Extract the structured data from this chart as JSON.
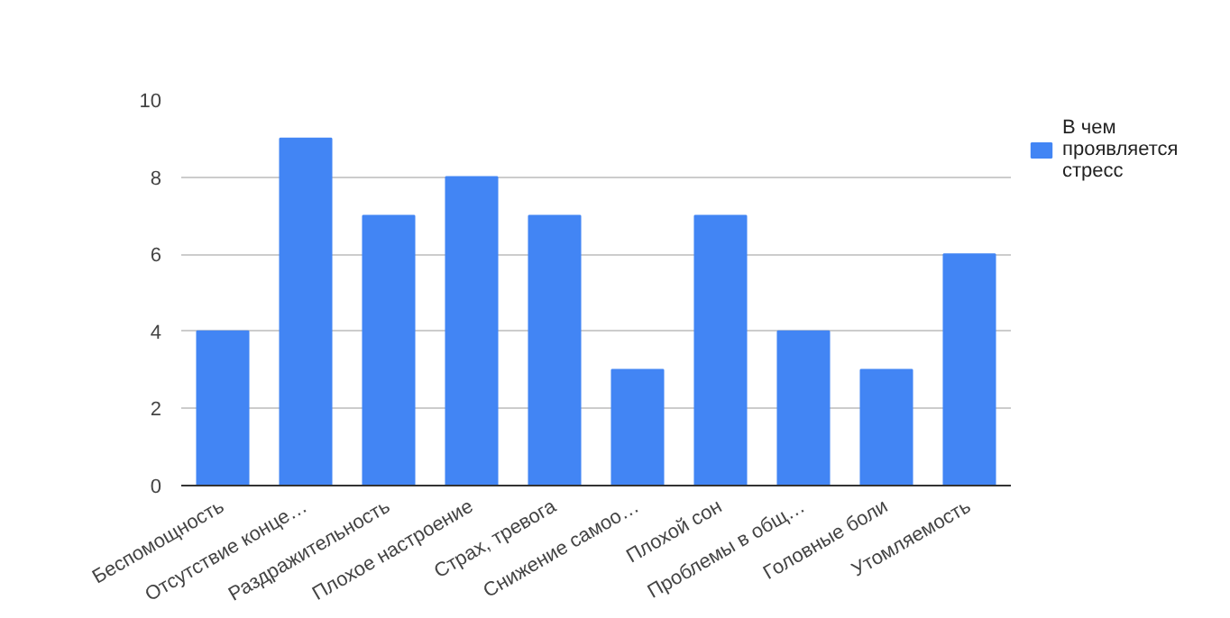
{
  "chart_data": {
    "type": "bar",
    "categories": [
      "Беспомощность",
      "Отсутствие конце…",
      "Раздражительность",
      "Плохое настроение",
      "Страх, тревога",
      "Снижение самоо…",
      "Плохой сон",
      "Проблемы в общ…",
      "Головные боли",
      "Утомляемость"
    ],
    "series": [
      {
        "name": "В чем проявляется стресс",
        "color": "#4285f4",
        "values": [
          4,
          9,
          7,
          8,
          7,
          3,
          7,
          4,
          3,
          6
        ]
      }
    ],
    "ylim": [
      0,
      10
    ],
    "yticks": [
      0,
      2,
      4,
      6,
      8,
      10
    ],
    "grid": "y",
    "legend": "right"
  }
}
